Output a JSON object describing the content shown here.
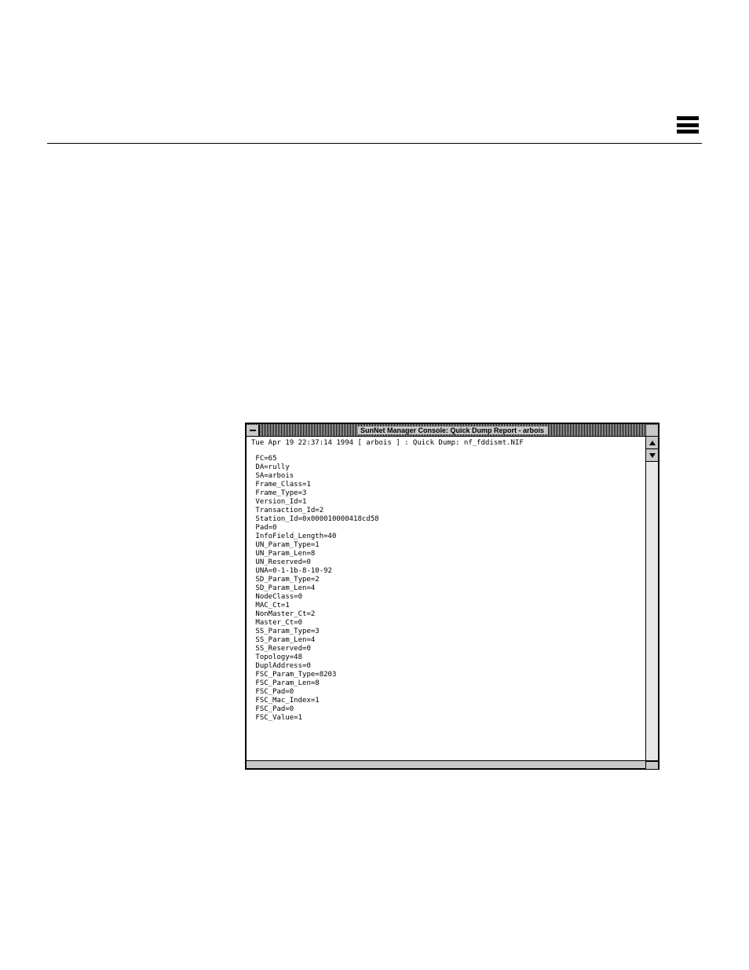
{
  "window": {
    "title": "SunNet Manager Console: Quick Dump Report - arbois",
    "header_line": "Tue Apr 19 22:37:14 1994 [ arbois ] : Quick Dump: nf_fddismt.NIF",
    "lines": [
      "FC=65",
      "DA=rully",
      "SA=arbois",
      "Frame_Class=1",
      "Frame_Type=3",
      "Version_Id=1",
      "Transaction_Id=2",
      "Station_Id=0x000010000418cd58",
      "Pad=0",
      "InfoField_Length=40",
      "UN_Param_Type=1",
      "UN_Param_Len=8",
      "UN_Reserved=0",
      "UNA=0-1-1b-8-10-92",
      "SD_Param_Type=2",
      "SD_Param_Len=4",
      "NodeClass=0",
      "MAC_Ct=1",
      "NonMaster_Ct=2",
      "Master_Ct=0",
      "SS_Param_Type=3",
      "SS_Param_Len=4",
      "SS_Reserved=0",
      "Topology=48",
      "DuplAddress=0",
      "FSC_Param_Type=8203",
      "FSC_Param_Len=8",
      "FSC_Pad=0",
      "FSC_Mac_Index=1",
      "FSC_Pad=0",
      "FSC_Value=1"
    ]
  }
}
